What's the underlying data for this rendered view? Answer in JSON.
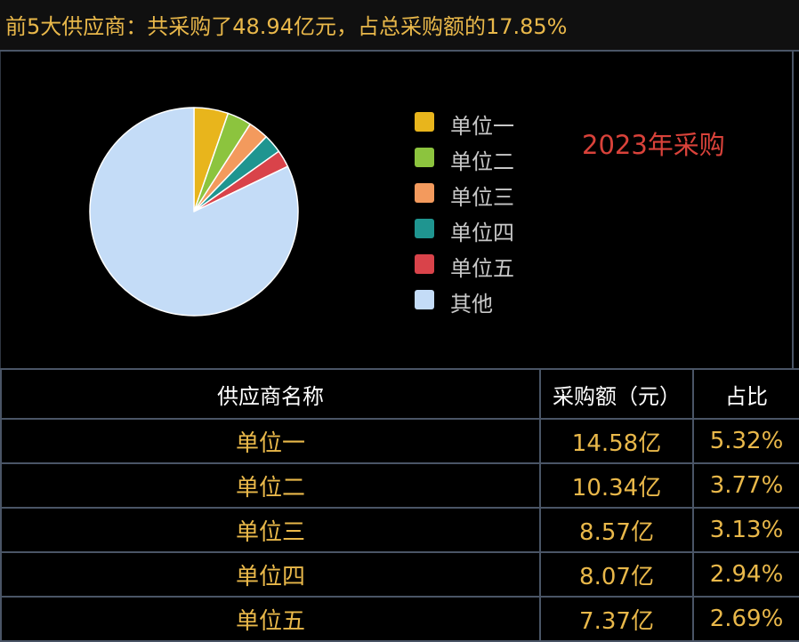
{
  "header": {
    "title": "前5大供应商：共采购了48.94亿元，占总采购额的17.85%"
  },
  "chart_data": {
    "type": "pie",
    "title": "2023年采购",
    "labels": [
      "单位一",
      "单位二",
      "单位三",
      "单位四",
      "单位五",
      "其他"
    ],
    "values": [
      5.32,
      3.77,
      3.13,
      2.94,
      2.69,
      82.15
    ],
    "colors": [
      "#e8b51c",
      "#8cc43e",
      "#f39a5d",
      "#1f9590",
      "#d9434a",
      "#c4dcf7"
    ],
    "legend_position": "right"
  },
  "table": {
    "headers": [
      "供应商名称",
      "采购额（元）",
      "占比"
    ],
    "rows": [
      [
        "单位一",
        "14.58亿",
        "5.32%"
      ],
      [
        "单位二",
        "10.34亿",
        "3.77%"
      ],
      [
        "单位三",
        "8.57亿",
        "3.13%"
      ],
      [
        "单位四",
        "8.07亿",
        "2.94%"
      ],
      [
        "单位五",
        "7.37亿",
        "2.69%"
      ]
    ]
  }
}
